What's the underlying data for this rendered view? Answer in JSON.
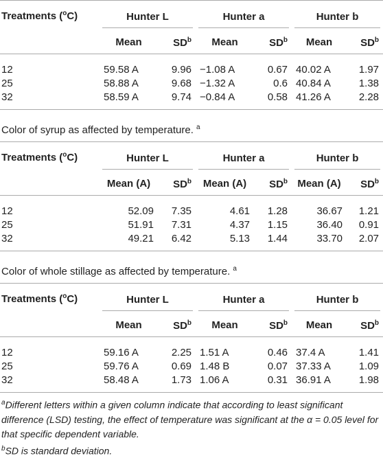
{
  "tables": [
    {
      "header": {
        "treatments": {
          "text": "Treatments (",
          "sup": "o",
          "tail": "C)"
        },
        "groups": [
          "Hunter L",
          "Hunter a",
          "Hunter b"
        ],
        "subheaders": [
          {
            "text": "Mean"
          },
          {
            "text": "SD",
            "sup": "b"
          },
          {
            "text": "Mean"
          },
          {
            "text": "SD",
            "sup": "b"
          },
          {
            "text": "Mean"
          },
          {
            "text": "SD",
            "sup": "b"
          }
        ]
      },
      "rows": [
        [
          "12",
          "59.58 A",
          "9.96",
          "−1.08 A",
          "0.67",
          "40.02 A",
          "1.97"
        ],
        [
          "25",
          "58.88 A",
          "9.68",
          "−1.32 A",
          "0.6",
          "40.84 A",
          "1.38"
        ],
        [
          "32",
          "58.59 A",
          "9.74",
          "−0.84 A",
          "0.58",
          "41.26 A",
          "2.28"
        ]
      ]
    },
    {
      "caption": {
        "text": "Color of syrup as affected by temperature.",
        "sup": "a"
      },
      "header": {
        "treatments": {
          "text": "Treatments (",
          "sup": "o",
          "tail": "C)"
        },
        "groups": [
          "Hunter L",
          "Hunter a",
          "Hunter b"
        ],
        "subheaders": [
          {
            "text": "Mean (A)"
          },
          {
            "text": "SD",
            "sup": "b"
          },
          {
            "text": "Mean (A)"
          },
          {
            "text": "SD",
            "sup": "b"
          },
          {
            "text": "Mean (A)"
          },
          {
            "text": "SD",
            "sup": "b"
          }
        ]
      },
      "rows": [
        [
          "12",
          "52.09",
          "7.35",
          "4.61",
          "1.28",
          "36.67",
          "1.21"
        ],
        [
          "25",
          "51.91",
          "7.31",
          "4.37",
          "1.15",
          "36.40",
          "0.91"
        ],
        [
          "32",
          "49.21",
          "6.42",
          "5.13",
          "1.44",
          "33.70",
          "2.07"
        ]
      ]
    },
    {
      "caption": {
        "text": "Color of whole stillage as affected by temperature.",
        "sup": "a"
      },
      "header": {
        "treatments": {
          "text": "Treatments (",
          "sup": "o",
          "tail": "C)"
        },
        "groups": [
          "Hunter L",
          "Hunter a",
          "Hunter b"
        ],
        "subheaders": [
          {
            "text": "Mean"
          },
          {
            "text": "SD",
            "sup": "b"
          },
          {
            "text": "Mean"
          },
          {
            "text": "SD",
            "sup": "b"
          },
          {
            "text": "Mean"
          },
          {
            "text": "SD",
            "sup": "b"
          }
        ]
      },
      "rows": [
        [
          "12",
          "59.16 A",
          "2.25",
          "1.51 A",
          "0.46",
          "37.4 A",
          "1.41"
        ],
        [
          "25",
          "59.76 A",
          "0.69",
          "1.48 B",
          "0.07",
          "37.33 A",
          "1.09"
        ],
        [
          "32",
          "58.48 A",
          "1.73",
          "1.06 A",
          "0.31",
          "36.91 A",
          "1.98"
        ]
      ]
    }
  ],
  "footnotes": [
    {
      "sup": "a",
      "text": "Different letters within a given column indicate that according to least significant difference (LSD) testing, the effect of temperature was significant at the α = 0.05 level for that specific dependent variable."
    },
    {
      "sup": "b",
      "text": "SD is standard deviation."
    }
  ]
}
